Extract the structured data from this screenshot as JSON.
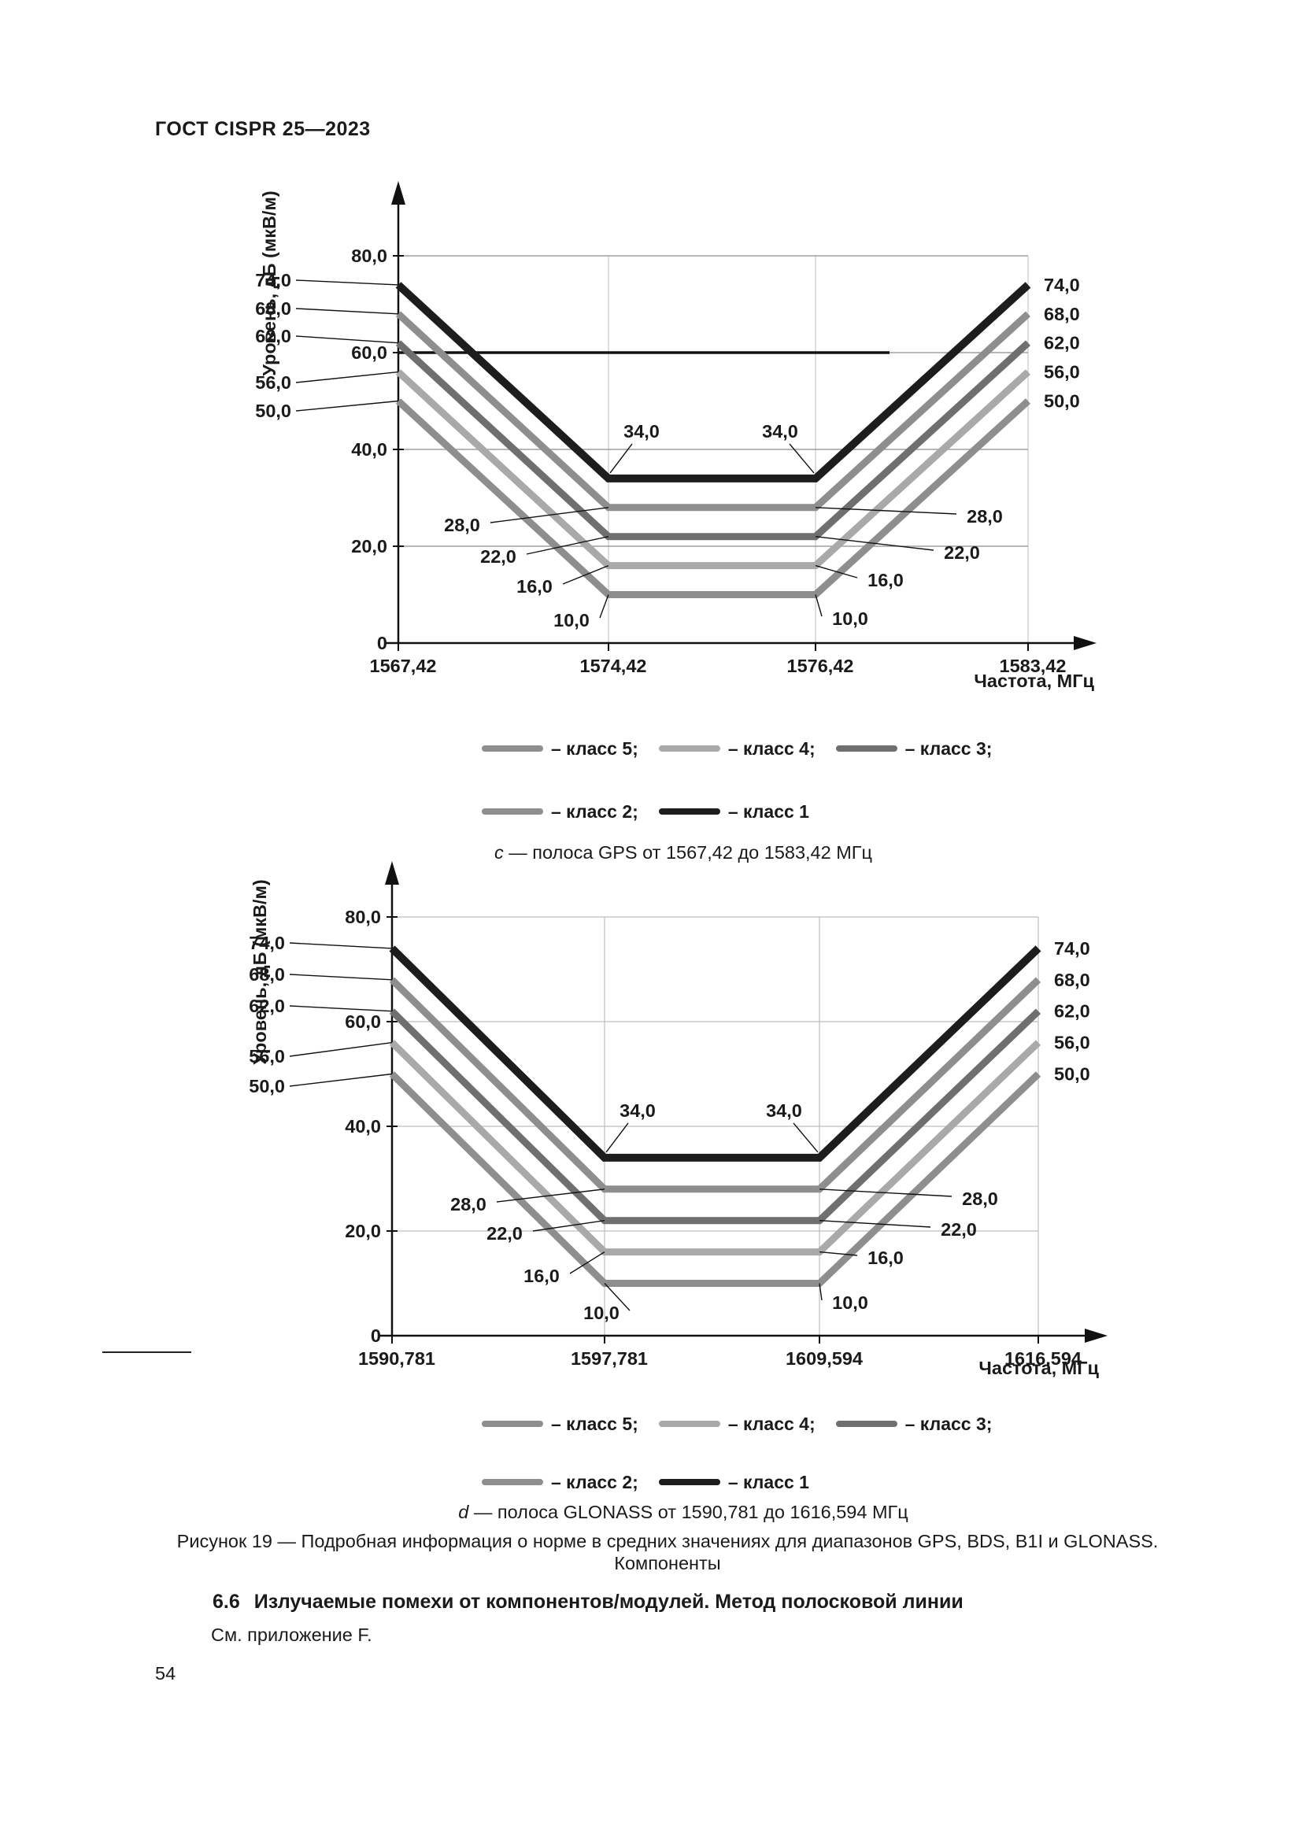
{
  "page": {
    "header": "ГОСТ CISPR 25—2023",
    "page_number": "54"
  },
  "figure": {
    "caption_line1": "Рисунок 19 — Подробная информация о норме в средних значениях для диапазонов GPS, BDS, B1I и GLONASS.",
    "caption_line2": "Компоненты"
  },
  "section": {
    "heading_number": "6.6",
    "heading_text": "Излучаемые помехи от компонентов/модулей. Метод полосковой линии",
    "body": "См. приложение F."
  },
  "legend": {
    "rows": [
      [
        {
          "label": "– класс 5;",
          "color": "#8e8e8e"
        },
        {
          "label": "– класс 4;",
          "color": "#a9a9a9"
        },
        {
          "label": "– класс 3;",
          "color": "#6f6f6f"
        }
      ],
      [
        {
          "label": "– класс 2;",
          "color": "#8e8e8e"
        },
        {
          "label": "– класс 1",
          "color": "#1d1d1d"
        }
      ]
    ]
  },
  "chart_data": [
    {
      "type": "line",
      "band": "GPS",
      "caption": {
        "letter": "c",
        "text": " — полоса GPS от 1567,42 до 1583,42 МГц"
      },
      "xlabel": "Частота, МГц",
      "ylabel": "Уровень, дБ (мкВ/м)",
      "x_ticks": [
        "1567,42",
        "1574,42",
        "1576,42",
        "1583,42"
      ],
      "x_values_mhz": [
        1567.42,
        1574.42,
        1576.42,
        1583.42
      ],
      "y_axis_ticks": [
        "80,0",
        "60,0",
        "40,0",
        "20,0",
        "0"
      ],
      "y_axis_tick_values": [
        80,
        60,
        40,
        20,
        0
      ],
      "ylim": [
        0,
        88
      ],
      "grid": true,
      "legend_position": "bottom",
      "reference_line": {
        "y": 60
      },
      "series": [
        {
          "name": "класс 1",
          "color": "#1d1d1d",
          "values": [
            74,
            34,
            34,
            74
          ]
        },
        {
          "name": "класс 2",
          "color": "#8e8e8e",
          "values": [
            68,
            28,
            28,
            68
          ]
        },
        {
          "name": "класс 3",
          "color": "#6f6f6f",
          "values": [
            62,
            22,
            22,
            62
          ]
        },
        {
          "name": "класс 4",
          "color": "#a9a9a9",
          "values": [
            56,
            16,
            16,
            56
          ]
        },
        {
          "name": "класс 5",
          "color": "#8e8e8e",
          "values": [
            50,
            10,
            10,
            50
          ]
        }
      ],
      "point_labels": {
        "left": [
          "74,0",
          "68,0",
          "62,0",
          "56,0",
          "50,0"
        ],
        "right": [
          "74,0",
          "68,0",
          "62,0",
          "56,0",
          "50,0"
        ],
        "inner_top": [
          "34,0",
          "34,0"
        ],
        "inner_left": [
          "28,0",
          "22,0",
          "16,0",
          "10,0"
        ],
        "inner_right": [
          "28,0",
          "22,0",
          "16,0",
          "10,0"
        ]
      }
    },
    {
      "type": "line",
      "band": "GLONASS",
      "caption": {
        "letter": "d",
        "text": " — полоса GLONASS от 1590,781 до 1616,594 МГц"
      },
      "xlabel": "Частота, МГц",
      "ylabel": "Уровень, дБ (мкВ/м)",
      "x_ticks": [
        "1590,781",
        "1597,781",
        "1609,594",
        "1616,594"
      ],
      "x_values_mhz": [
        1590.781,
        1597.781,
        1609.594,
        1616.594
      ],
      "y_axis_ticks": [
        "80,0",
        "60,0",
        "40,0",
        "20,0",
        "0"
      ],
      "y_axis_tick_values": [
        80,
        60,
        40,
        20,
        0
      ],
      "ylim": [
        0,
        88
      ],
      "grid": true,
      "legend_position": "bottom",
      "series": [
        {
          "name": "класс 1",
          "color": "#1d1d1d",
          "values": [
            74,
            34,
            34,
            74
          ]
        },
        {
          "name": "класс 2",
          "color": "#8e8e8e",
          "values": [
            68,
            28,
            28,
            68
          ]
        },
        {
          "name": "класс 3",
          "color": "#6f6f6f",
          "values": [
            62,
            22,
            22,
            62
          ]
        },
        {
          "name": "класс 4",
          "color": "#a9a9a9",
          "values": [
            56,
            16,
            16,
            56
          ]
        },
        {
          "name": "класс 5",
          "color": "#8e8e8e",
          "values": [
            50,
            10,
            10,
            50
          ]
        }
      ],
      "point_labels": {
        "left": [
          "74,0",
          "68,0",
          "62,0",
          "56,0",
          "50,0"
        ],
        "right": [
          "74,0",
          "68,0",
          "62,0",
          "56,0",
          "50,0"
        ],
        "inner_top": [
          "34,0",
          "34,0"
        ],
        "inner_left": [
          "28,0",
          "22,0",
          "16,0",
          "10,0"
        ],
        "inner_right": [
          "28,0",
          "22,0",
          "16,0",
          "10,0"
        ]
      }
    }
  ]
}
